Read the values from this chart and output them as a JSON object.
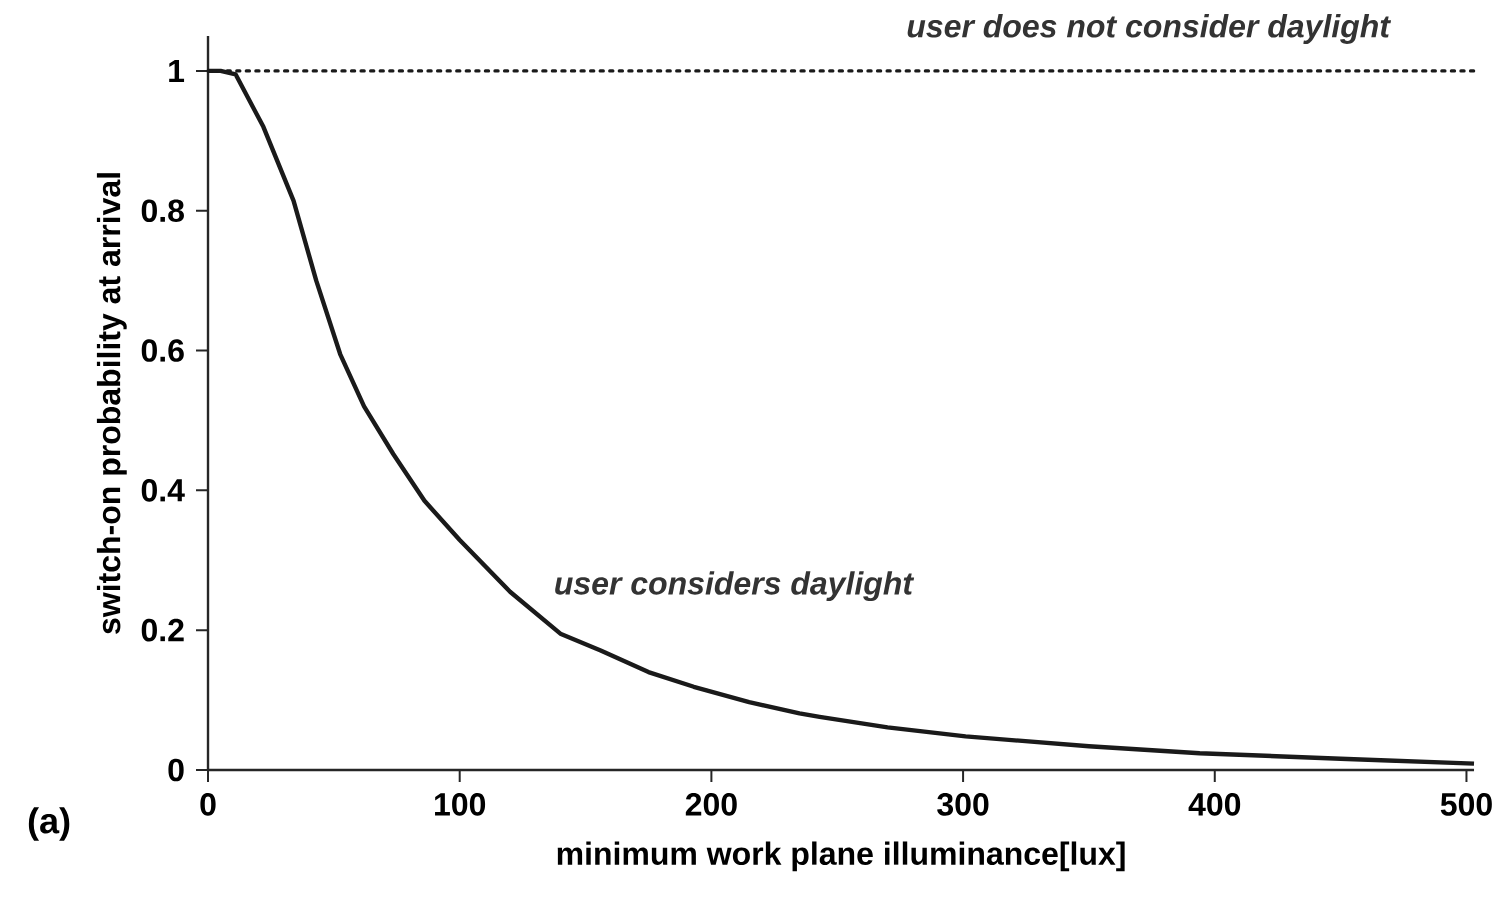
{
  "chart_data": {
    "type": "line",
    "xlabel": "minimum work plane illuminance[lux]",
    "ylabel": "switch-on probability at arrival",
    "xlim": [
      0,
      503
    ],
    "ylim": [
      0,
      1.05
    ],
    "xticks": [
      0,
      100,
      200,
      300,
      400,
      500
    ],
    "yticks": [
      0,
      0.2,
      0.4,
      0.6,
      0.8,
      1
    ],
    "marker": "none",
    "series": [
      {
        "name": "user considers daylight",
        "color": "#1a1a1a",
        "line_style": "solid",
        "x": [
          0,
          5,
          11,
          22,
          34,
          43,
          52.5,
          62,
          73.6,
          86,
          100,
          120,
          140,
          156,
          175,
          193,
          215,
          235,
          243,
          270,
          301,
          350,
          394,
          450,
          503
        ],
        "values": [
          1,
          1,
          0.995,
          0.92,
          0.814,
          0.7,
          0.595,
          0.52,
          0.452,
          0.385,
          0.329,
          0.255,
          0.195,
          0.171,
          0.14,
          0.119,
          0.097,
          0.081,
          0.076,
          0.061,
          0.048,
          0.034,
          0.024,
          0.016,
          0.009
        ]
      },
      {
        "name": "user does not consider daylight",
        "color": "#1a1a1a",
        "line_style": "dotted",
        "x": [
          0,
          503
        ],
        "values": [
          1,
          1
        ]
      }
    ],
    "annotations": [
      "(a)"
    ]
  }
}
